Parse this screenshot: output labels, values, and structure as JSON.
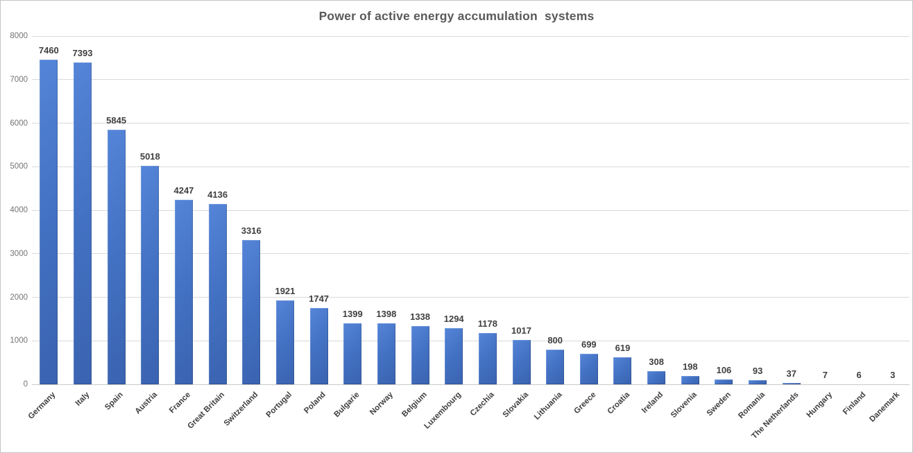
{
  "chart_data": {
    "type": "bar",
    "title": "Power of active energy accumulation  systems",
    "categories": [
      "Germany",
      "Italy",
      "Spain",
      "Austria",
      "France",
      "Great Britain",
      "Switzerland",
      "Portugal",
      "Poland",
      "Bulgarie",
      "Norway",
      "Belgium",
      "Luxembourg",
      "Czechia",
      "Slovakia",
      "Lithuania",
      "Greece",
      "Croatia",
      "Ireland",
      "Slovenia",
      "Sweden",
      "Romania",
      "The Netherlands",
      "Hungary",
      "Finland",
      "Danemark"
    ],
    "values": [
      7460,
      7393,
      5845,
      5018,
      4247,
      4136,
      3316,
      1921,
      1747,
      1399,
      1398,
      1338,
      1294,
      1178,
      1017,
      800,
      699,
      619,
      308,
      198,
      106,
      93,
      37,
      7,
      6,
      3
    ],
    "y_ticks": [
      0,
      1000,
      2000,
      3000,
      4000,
      5000,
      6000,
      7000,
      8000
    ],
    "ylim": [
      0,
      8000
    ],
    "xlabel": "",
    "ylabel": "",
    "grid": true,
    "legend": false,
    "data_labels": true,
    "colors": {
      "bar_gradient_start": "#5585d8",
      "bar_mid": "#4472c4",
      "bar_gradient_end": "#3a63b0",
      "gridline": "#d9d9d9",
      "baseline": "#c9c9c9",
      "title_text": "#595959",
      "axis_tick_text": "#737373",
      "data_label_text": "#3f3f3f",
      "background": "#ffffff",
      "frame_border": "#c3c3c3"
    }
  }
}
